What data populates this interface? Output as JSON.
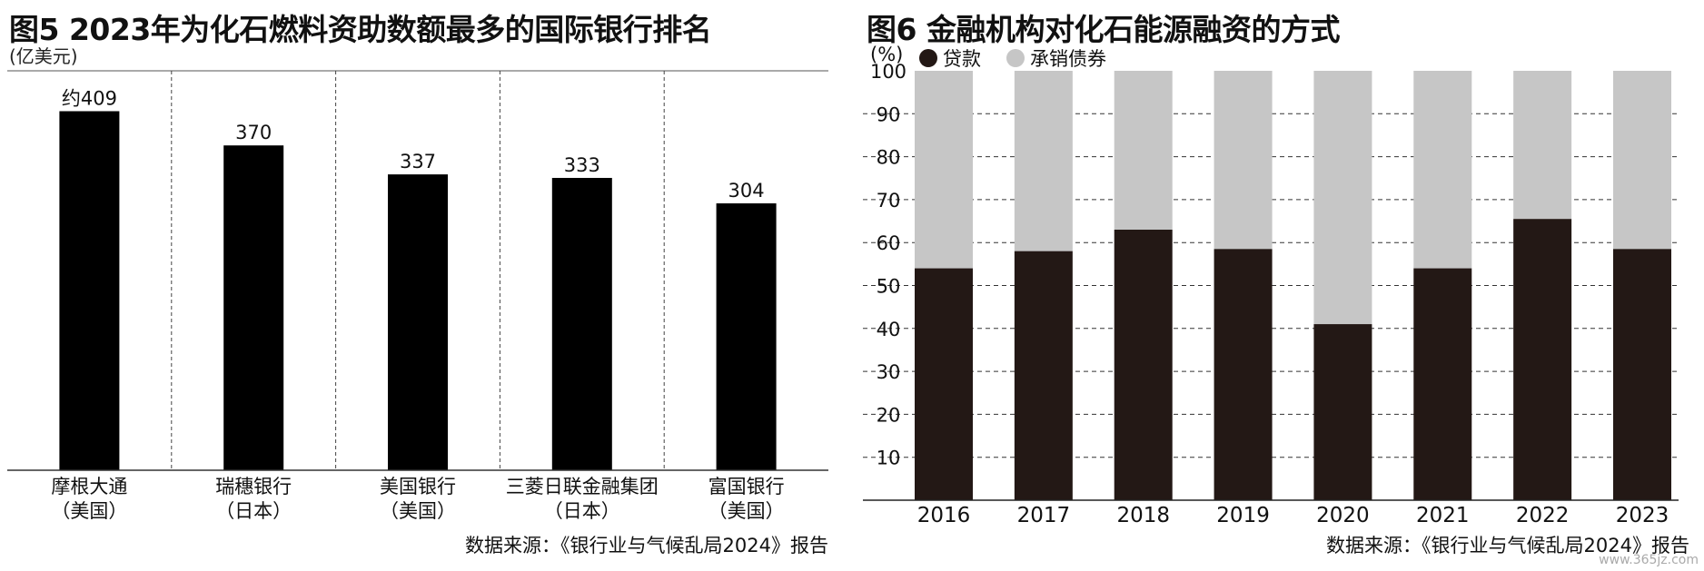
{
  "left": {
    "title": "图5 2023年为化石燃料资助数额最多的国际银行排名",
    "unit": "(亿美元)",
    "source": "数据来源：《银行业与气候乱局2024》报告",
    "colors": {
      "bar": "#000000",
      "grid": "#555555",
      "axis": "#333333"
    }
  },
  "right": {
    "title": "图6 金融机构对化石能源融资的方式",
    "unit": "(%)",
    "source": "数据来源：《银行业与气候乱局2024》报告",
    "colors": {
      "loan": "#231815",
      "bond": "#c6c6c6",
      "grid": "#333333"
    }
  },
  "watermark": "www.365jz.com",
  "chart_data": [
    {
      "type": "bar",
      "title": "图5 2023年为化石燃料资助数额最多的国际银行排名",
      "ylabel": "(亿美元)",
      "categories": [
        {
          "name": "摩根大通",
          "country": "（美国）"
        },
        {
          "name": "瑞穗银行",
          "country": "（日本）"
        },
        {
          "name": "美国银行",
          "country": "（美国）"
        },
        {
          "name": "三菱日联金融集团",
          "country": "（日本）"
        },
        {
          "name": "富国银行",
          "country": "（美国）"
        }
      ],
      "values": [
        409,
        370,
        337,
        333,
        304
      ],
      "data_labels": [
        "约409",
        "370",
        "337",
        "333",
        "304"
      ],
      "ylim": [
        0,
        455
      ],
      "grid": false
    },
    {
      "type": "bar",
      "stacked": true,
      "title": "图6 金融机构对化石能源融资的方式",
      "ylabel": "(%)",
      "categories": [
        "2016",
        "2017",
        "2018",
        "2019",
        "2020",
        "2021",
        "2022",
        "2023"
      ],
      "series": [
        {
          "name": "贷款",
          "values": [
            54,
            58,
            63,
            58.5,
            41,
            54,
            65.5,
            58.5
          ]
        },
        {
          "name": "承销债券",
          "values": [
            46,
            42,
            37,
            41.5,
            59,
            46,
            34.5,
            41.5
          ]
        }
      ],
      "yticks": [
        10,
        20,
        30,
        40,
        50,
        60,
        70,
        80,
        90,
        100
      ],
      "ylim": [
        0,
        100
      ],
      "grid": true,
      "legend_position": "top-left"
    }
  ]
}
